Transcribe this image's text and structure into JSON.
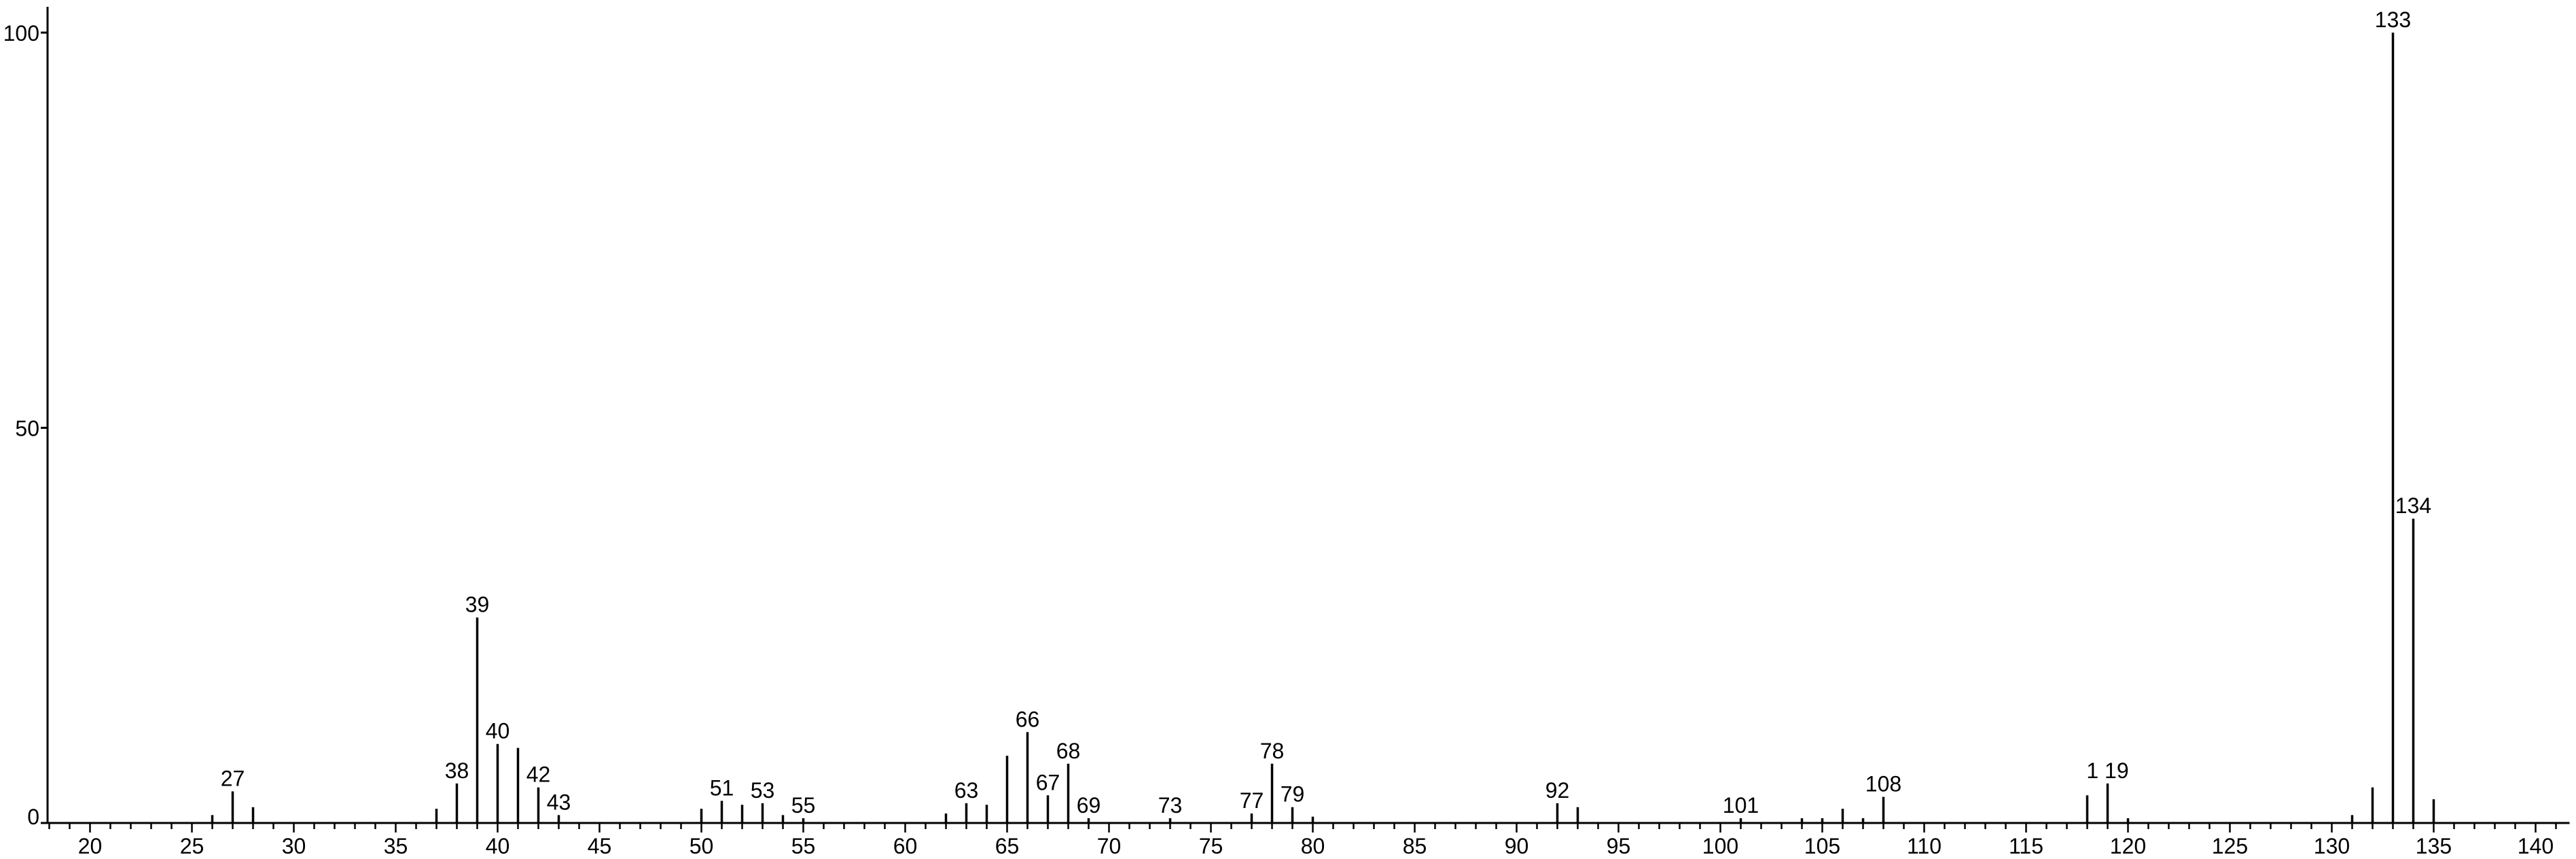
{
  "chart_data": {
    "type": "bar",
    "title": "",
    "xlabel": "",
    "ylabel": "",
    "xlim": [
      18,
      141
    ],
    "ylim": [
      0,
      100
    ],
    "grid": false,
    "x_ticks": [
      20,
      25,
      30,
      35,
      40,
      45,
      50,
      55,
      60,
      65,
      70,
      75,
      80,
      85,
      90,
      95,
      100,
      105,
      110,
      115,
      120,
      125,
      130,
      135,
      140
    ],
    "x_tick_labels": [
      "20",
      "25",
      "30",
      "35",
      "40",
      "45",
      "50",
      "55",
      "60",
      "65",
      "70",
      "75",
      "80",
      "85",
      "90",
      "95",
      "100",
      "105",
      "110",
      "115",
      "120",
      "125",
      "130",
      "135",
      "140"
    ],
    "y_ticks": [
      0,
      50,
      100
    ],
    "y_tick_labels": [
      "0",
      "50",
      "100"
    ],
    "peaks": [
      {
        "x": 26,
        "y": 1.0
      },
      {
        "x": 27,
        "y": 4.0,
        "label": "27"
      },
      {
        "x": 28,
        "y": 2.0
      },
      {
        "x": 37,
        "y": 1.8
      },
      {
        "x": 38,
        "y": 5.0,
        "label": "38"
      },
      {
        "x": 39,
        "y": 26.0,
        "label": "39"
      },
      {
        "x": 40,
        "y": 10.0,
        "label": "40"
      },
      {
        "x": 41,
        "y": 9.5
      },
      {
        "x": 42,
        "y": 4.5,
        "label": "42"
      },
      {
        "x": 43,
        "y": 1.0,
        "label": "43"
      },
      {
        "x": 50,
        "y": 1.8
      },
      {
        "x": 51,
        "y": 2.8,
        "label": "51"
      },
      {
        "x": 52,
        "y": 2.3
      },
      {
        "x": 53,
        "y": 2.5,
        "label": "53"
      },
      {
        "x": 54,
        "y": 1.0
      },
      {
        "x": 55,
        "y": 0.6,
        "label": "55"
      },
      {
        "x": 62,
        "y": 1.2
      },
      {
        "x": 63,
        "y": 2.5,
        "label": "63"
      },
      {
        "x": 64,
        "y": 2.3
      },
      {
        "x": 65,
        "y": 8.5
      },
      {
        "x": 66,
        "y": 11.5,
        "label": "66"
      },
      {
        "x": 67,
        "y": 3.5,
        "label": "67"
      },
      {
        "x": 68,
        "y": 7.5,
        "label": "68"
      },
      {
        "x": 69,
        "y": 0.6,
        "label": "69"
      },
      {
        "x": 73,
        "y": 0.6,
        "label": "73"
      },
      {
        "x": 77,
        "y": 1.2,
        "label": "77"
      },
      {
        "x": 78,
        "y": 7.5,
        "label": "78"
      },
      {
        "x": 79,
        "y": 2.0,
        "label": "79"
      },
      {
        "x": 80,
        "y": 0.8
      },
      {
        "x": 92,
        "y": 2.5,
        "label": "92"
      },
      {
        "x": 93,
        "y": 2.0
      },
      {
        "x": 101,
        "y": 0.6,
        "label": "101"
      },
      {
        "x": 104,
        "y": 0.6
      },
      {
        "x": 105,
        "y": 0.6
      },
      {
        "x": 106,
        "y": 1.8
      },
      {
        "x": 107,
        "y": 0.6
      },
      {
        "x": 108,
        "y": 3.3,
        "label": "108"
      },
      {
        "x": 118,
        "y": 3.5
      },
      {
        "x": 119,
        "y": 5.0,
        "label": "1 19"
      },
      {
        "x": 120,
        "y": 0.6
      },
      {
        "x": 131,
        "y": 1.0
      },
      {
        "x": 132,
        "y": 4.5
      },
      {
        "x": 133,
        "y": 100.0,
        "label": "133"
      },
      {
        "x": 134,
        "y": 38.5,
        "label": "134"
      },
      {
        "x": 135,
        "y": 3.0
      }
    ]
  }
}
